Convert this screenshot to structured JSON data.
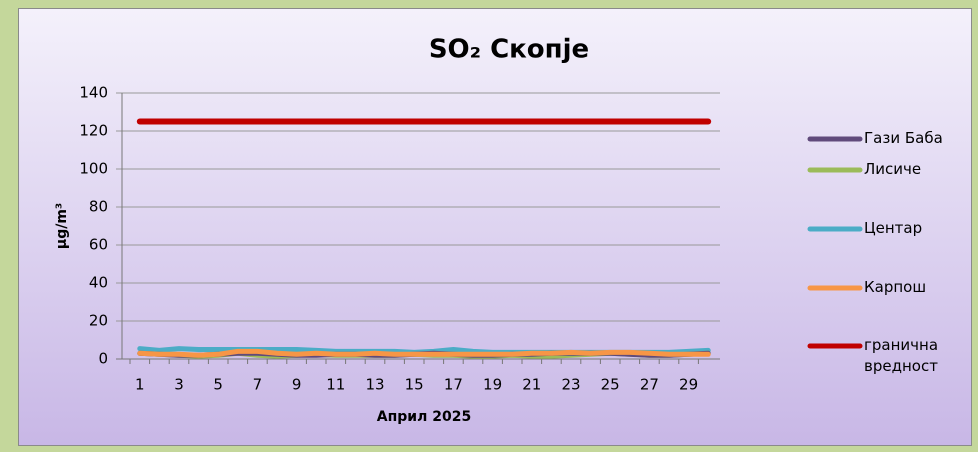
{
  "chart_data": {
    "type": "line",
    "title": "SO₂ Скопје",
    "y_label": "µg/m³",
    "x_label": "Април 2025",
    "categories": [
      1,
      null,
      3,
      null,
      5,
      null,
      7,
      null,
      9,
      null,
      11,
      null,
      13,
      null,
      15,
      null,
      17,
      null,
      19,
      null,
      21,
      null,
      23,
      null,
      25,
      null,
      27,
      null,
      29,
      null
    ],
    "series": [
      {
        "name": "Гази Баба",
        "color": "#604a7b",
        "values": [
          3,
          2.5,
          2,
          2,
          2.5,
          3,
          3,
          2.5,
          2,
          2,
          2.5,
          2.5,
          2,
          2,
          2.5,
          3,
          2.5,
          2,
          2,
          2.5,
          2.5,
          3,
          3,
          3,
          3,
          2.5,
          2,
          2,
          2.5,
          3
        ]
      },
      {
        "name": "Лисиче",
        "color": "#9bbb59",
        "values": [
          3,
          2.5,
          2,
          1.5,
          2,
          3,
          2,
          1.5,
          2,
          2.5,
          2,
          2,
          2,
          2,
          2.5,
          2,
          2,
          1.5,
          1.5,
          2,
          1.5,
          1.5,
          2,
          2.5,
          3,
          2.5,
          2,
          2,
          2.5,
          3
        ]
      },
      {
        "name": "Центар",
        "color": "#4bacc6",
        "values": [
          5.5,
          4.5,
          5.5,
          5,
          5,
          5,
          5,
          5,
          5,
          4.5,
          4,
          4,
          4,
          4,
          3.5,
          4,
          5,
          4,
          3.5,
          3.5,
          3.5,
          3.5,
          3.5,
          3.5,
          3.5,
          3.5,
          3.5,
          3.5,
          4,
          4.5
        ]
      },
      {
        "name": "Карпош",
        "color": "#f79646",
        "values": [
          3,
          2.5,
          2.5,
          2,
          2.5,
          4,
          4,
          3,
          2.5,
          3,
          2.5,
          2.5,
          3,
          2.5,
          2.5,
          2.5,
          2.5,
          2.5,
          2.5,
          2.5,
          3,
          3,
          3.5,
          3,
          3.5,
          3.5,
          3,
          2.5,
          2.5,
          2.5
        ]
      },
      {
        "name": "гранична вредност",
        "color": "#c00000",
        "values": [
          125,
          125,
          125,
          125,
          125,
          125,
          125,
          125,
          125,
          125,
          125,
          125,
          125,
          125,
          125,
          125,
          125,
          125,
          125,
          125,
          125,
          125,
          125,
          125,
          125,
          125,
          125,
          125,
          125,
          125
        ]
      }
    ],
    "ylim": [
      0,
      140
    ],
    "yticks": [
      0,
      20,
      40,
      60,
      80,
      100,
      120,
      140
    ],
    "grid": true,
    "legend": "right"
  }
}
